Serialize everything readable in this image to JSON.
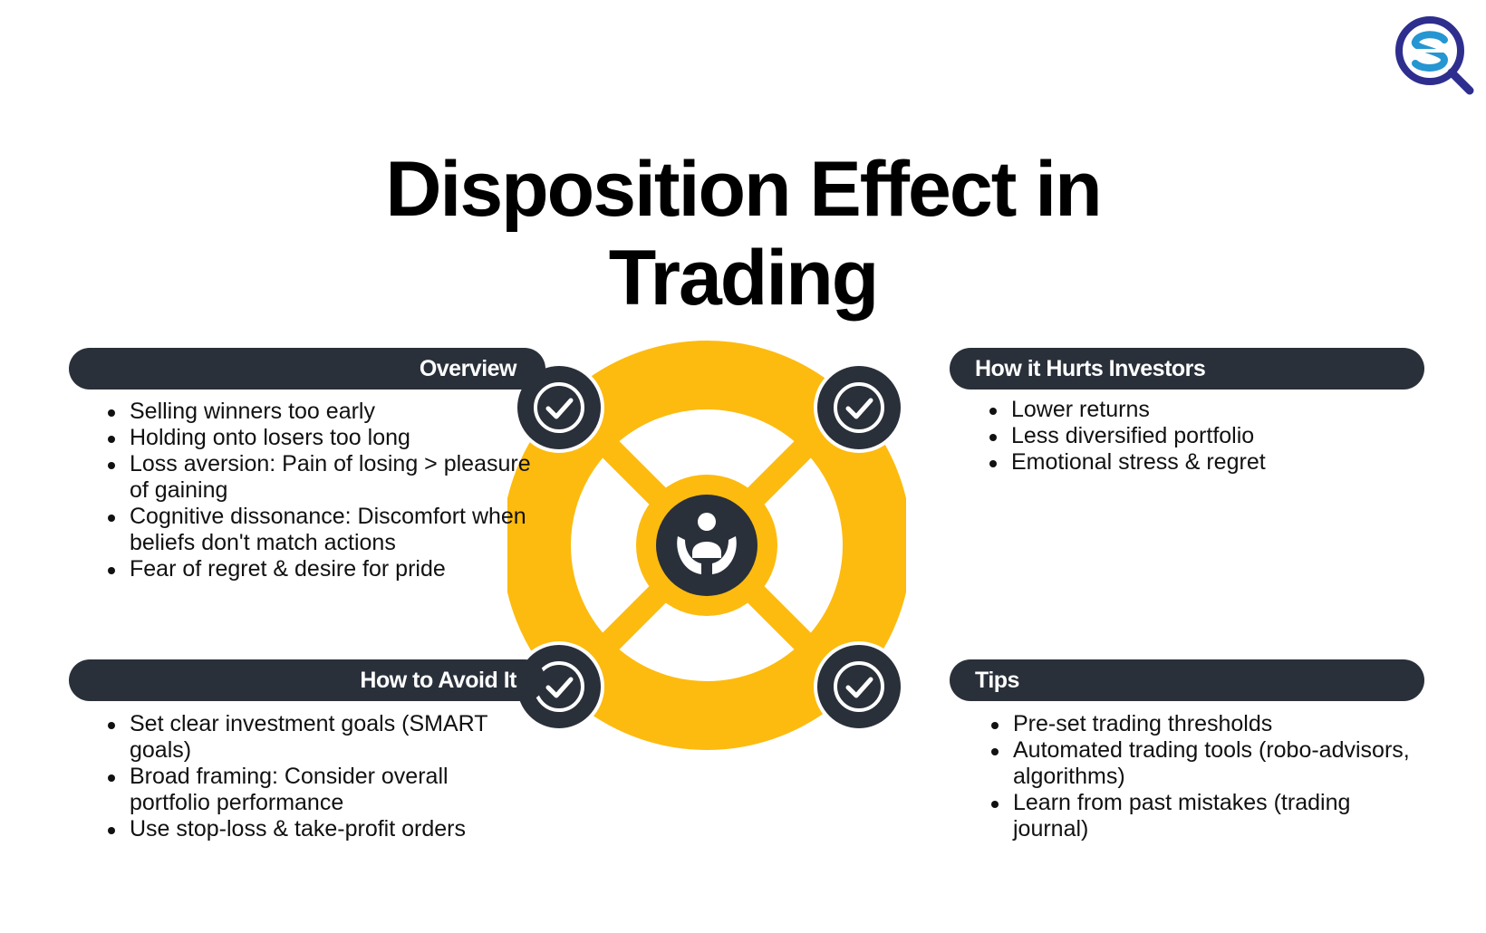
{
  "title": {
    "line1": "Disposition Effect in",
    "line2": "Trading"
  },
  "colors": {
    "accent": "#fdbb0f",
    "dark": "#2a303a",
    "text": "#111111",
    "logo_blue": "#2596d1",
    "logo_purple": "#2e2e8f"
  },
  "icons": {
    "logo": "sq-logo-icon",
    "center": "hands-holding-person-icon",
    "badge": "check-circle-icon"
  },
  "sections": {
    "overview": {
      "heading": "Overview",
      "items": [
        "Selling winners too early",
        "Holding onto losers too long",
        "Loss aversion: Pain of losing > pleasure of gaining",
        "Cognitive dissonance: Discomfort when beliefs don't match actions",
        "Fear of regret & desire for pride"
      ]
    },
    "hurts": {
      "heading": "How it Hurts Investors",
      "items": [
        "Lower returns",
        "Less diversified portfolio",
        "Emotional stress & regret"
      ]
    },
    "avoid": {
      "heading": "How to Avoid It",
      "items": [
        "Set clear investment goals (SMART goals)",
        "Broad framing: Consider overall portfolio performance",
        "Use stop-loss & take-profit orders"
      ]
    },
    "tips": {
      "heading": "Tips",
      "items": [
        "Pre-set trading thresholds",
        "Automated trading tools (robo-advisors, algorithms)",
        "Learn from past mistakes (trading journal)"
      ]
    }
  }
}
